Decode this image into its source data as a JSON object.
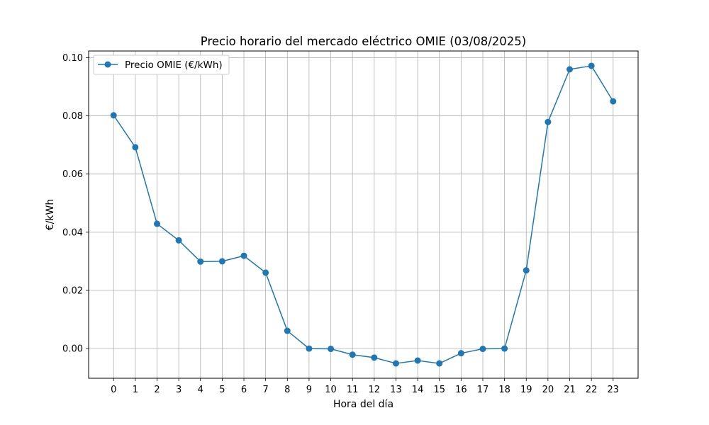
{
  "chart_data": {
    "type": "line",
    "title": "Precio horario del mercado eléctrico OMIE (03/08/2025)",
    "xlabel": "Hora del día",
    "ylabel": "€/kWh",
    "x": [
      0,
      1,
      2,
      3,
      4,
      5,
      6,
      7,
      8,
      9,
      10,
      11,
      12,
      13,
      14,
      15,
      16,
      17,
      18,
      19,
      20,
      21,
      22,
      23
    ],
    "series": [
      {
        "name": "Precio OMIE (€/kWh)",
        "color": "#1f77b4",
        "values": [
          0.0802,
          0.0692,
          0.0429,
          0.0372,
          0.0299,
          0.03,
          0.0319,
          0.0261,
          0.0061,
          0.0,
          -0.0001,
          -0.0021,
          -0.0031,
          -0.0051,
          -0.0041,
          -0.0051,
          -0.0016,
          -0.0001,
          0.0,
          0.0269,
          0.0779,
          0.096,
          0.0972,
          0.085
        ]
      }
    ],
    "xticks": [
      "0",
      "1",
      "2",
      "3",
      "4",
      "5",
      "6",
      "7",
      "8",
      "9",
      "10",
      "11",
      "12",
      "13",
      "14",
      "15",
      "16",
      "17",
      "18",
      "19",
      "20",
      "21",
      "22",
      "23"
    ],
    "yticks": [
      0.0,
      0.02,
      0.04,
      0.06,
      0.08,
      0.1
    ],
    "ytick_labels": [
      "0.00",
      "0.02",
      "0.04",
      "0.06",
      "0.08",
      "0.10"
    ],
    "xlim": [
      -1.15,
      24.15
    ],
    "ylim": [
      -0.0102,
      0.1023
    ],
    "grid": true,
    "legend_position": "upper-left"
  }
}
